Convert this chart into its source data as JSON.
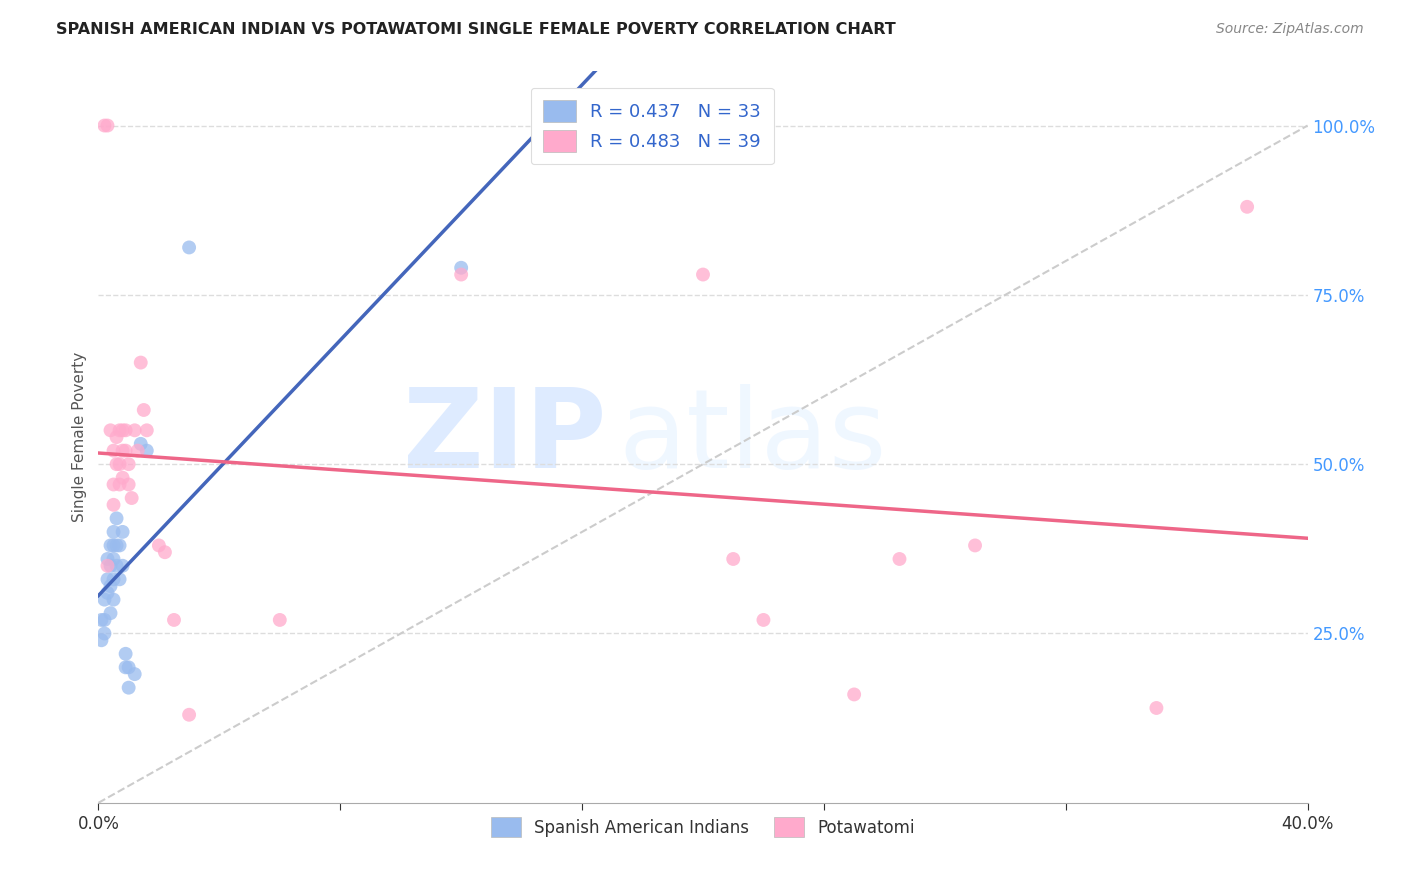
{
  "title": "SPANISH AMERICAN INDIAN VS POTAWATOMI SINGLE FEMALE POVERTY CORRELATION CHART",
  "source": "Source: ZipAtlas.com",
  "ylabel": "Single Female Poverty",
  "ylabel_right_labels": [
    "100.0%",
    "75.0%",
    "50.0%",
    "25.0%"
  ],
  "ylabel_right_positions": [
    1.0,
    0.75,
    0.5,
    0.25
  ],
  "legend_blue_R": "R = 0.437",
  "legend_blue_N": "N = 33",
  "legend_pink_R": "R = 0.483",
  "legend_pink_N": "N = 39",
  "legend_label_blue": "Spanish American Indians",
  "legend_label_pink": "Potawatomi",
  "blue_color": "#99BBEE",
  "pink_color": "#FFAACC",
  "blue_line_color": "#4466BB",
  "pink_line_color": "#EE6688",
  "watermark_zip": "ZIP",
  "watermark_atlas": "atlas",
  "xlim": [
    0.0,
    0.4
  ],
  "ylim": [
    0.0,
    1.08
  ],
  "xticks": [
    0.0,
    0.08,
    0.16,
    0.24,
    0.32,
    0.4
  ],
  "xticklabels": [
    "0.0%",
    "",
    "",
    "",
    "",
    "40.0%"
  ],
  "blue_scatter_x": [
    0.001,
    0.001,
    0.002,
    0.002,
    0.002,
    0.003,
    0.003,
    0.003,
    0.004,
    0.004,
    0.004,
    0.004,
    0.005,
    0.005,
    0.005,
    0.005,
    0.005,
    0.006,
    0.006,
    0.006,
    0.007,
    0.007,
    0.008,
    0.008,
    0.009,
    0.009,
    0.01,
    0.01,
    0.012,
    0.014,
    0.016,
    0.03,
    0.12
  ],
  "blue_scatter_y": [
    0.27,
    0.24,
    0.3,
    0.25,
    0.27,
    0.31,
    0.33,
    0.36,
    0.28,
    0.32,
    0.35,
    0.38,
    0.3,
    0.33,
    0.36,
    0.38,
    0.4,
    0.35,
    0.38,
    0.42,
    0.33,
    0.38,
    0.35,
    0.4,
    0.22,
    0.2,
    0.2,
    0.17,
    0.19,
    0.53,
    0.52,
    0.82,
    0.79
  ],
  "pink_scatter_x": [
    0.002,
    0.003,
    0.003,
    0.004,
    0.005,
    0.005,
    0.005,
    0.006,
    0.006,
    0.007,
    0.007,
    0.007,
    0.008,
    0.008,
    0.008,
    0.009,
    0.009,
    0.01,
    0.01,
    0.011,
    0.012,
    0.013,
    0.014,
    0.015,
    0.016,
    0.02,
    0.022,
    0.025,
    0.03,
    0.06,
    0.12,
    0.2,
    0.21,
    0.22,
    0.25,
    0.265,
    0.29,
    0.35,
    0.38
  ],
  "pink_scatter_y": [
    1.0,
    1.0,
    0.35,
    0.55,
    0.52,
    0.47,
    0.44,
    0.54,
    0.5,
    0.55,
    0.5,
    0.47,
    0.55,
    0.52,
    0.48,
    0.55,
    0.52,
    0.5,
    0.47,
    0.45,
    0.55,
    0.52,
    0.65,
    0.58,
    0.55,
    0.38,
    0.37,
    0.27,
    0.13,
    0.27,
    0.78,
    0.78,
    0.36,
    0.27,
    0.16,
    0.36,
    0.38,
    0.14,
    0.88
  ]
}
